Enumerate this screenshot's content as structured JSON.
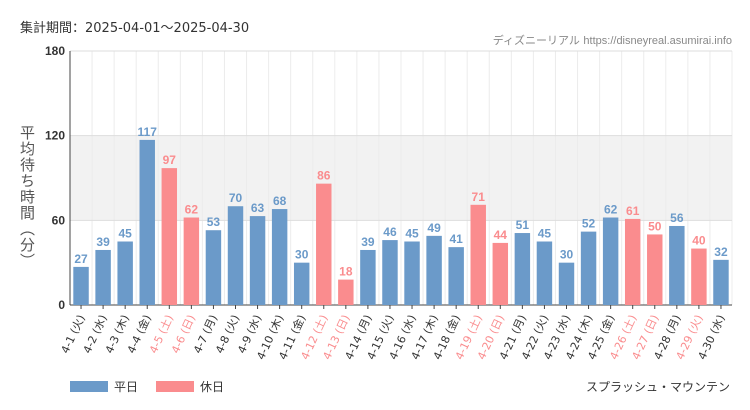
{
  "header": {
    "period": "集計期間：2025-04-01〜2025-04-30",
    "credit_name": "ディズニーリアル",
    "credit_url": "https://disneyreal.asumirai.info"
  },
  "colors": {
    "weekday": "#6b9ac9",
    "holiday": "#fa8c8e",
    "band": "#f2f2f2"
  },
  "legend": {
    "weekday": "平日",
    "holiday": "休日"
  },
  "attraction": "スプラッシュ・マウンテン",
  "chart_data": {
    "type": "bar",
    "title": "",
    "ylabel": "平均待ち時間（分）",
    "xlabel": "",
    "ylim": [
      0,
      180
    ],
    "yticks": [
      0,
      60,
      120,
      180
    ],
    "shaded_band": [
      60,
      120
    ],
    "grid": true,
    "legend_position": "bottom-left",
    "categories": [
      "4-1 (火)",
      "4-2 (水)",
      "4-3 (木)",
      "4-4 (金)",
      "4-5 (土)",
      "4-6 (日)",
      "4-7 (月)",
      "4-8 (火)",
      "4-9 (水)",
      "4-10 (木)",
      "4-11 (金)",
      "4-12 (土)",
      "4-13 (日)",
      "4-14 (月)",
      "4-15 (火)",
      "4-16 (水)",
      "4-17 (木)",
      "4-18 (金)",
      "4-19 (土)",
      "4-20 (日)",
      "4-21 (月)",
      "4-22 (火)",
      "4-23 (水)",
      "4-24 (木)",
      "4-25 (金)",
      "4-26 (土)",
      "4-27 (日)",
      "4-28 (月)",
      "4-29 (火)",
      "4-30 (水)"
    ],
    "values": [
      27,
      39,
      45,
      117,
      97,
      62,
      53,
      70,
      63,
      68,
      30,
      86,
      18,
      39,
      46,
      45,
      49,
      41,
      71,
      44,
      51,
      45,
      30,
      52,
      62,
      61,
      50,
      56,
      40,
      32
    ],
    "day_type": [
      "平日",
      "平日",
      "平日",
      "平日",
      "休日",
      "休日",
      "平日",
      "平日",
      "平日",
      "平日",
      "平日",
      "休日",
      "休日",
      "平日",
      "平日",
      "平日",
      "平日",
      "平日",
      "休日",
      "休日",
      "平日",
      "平日",
      "平日",
      "平日",
      "平日",
      "休日",
      "休日",
      "平日",
      "休日",
      "平日"
    ]
  }
}
